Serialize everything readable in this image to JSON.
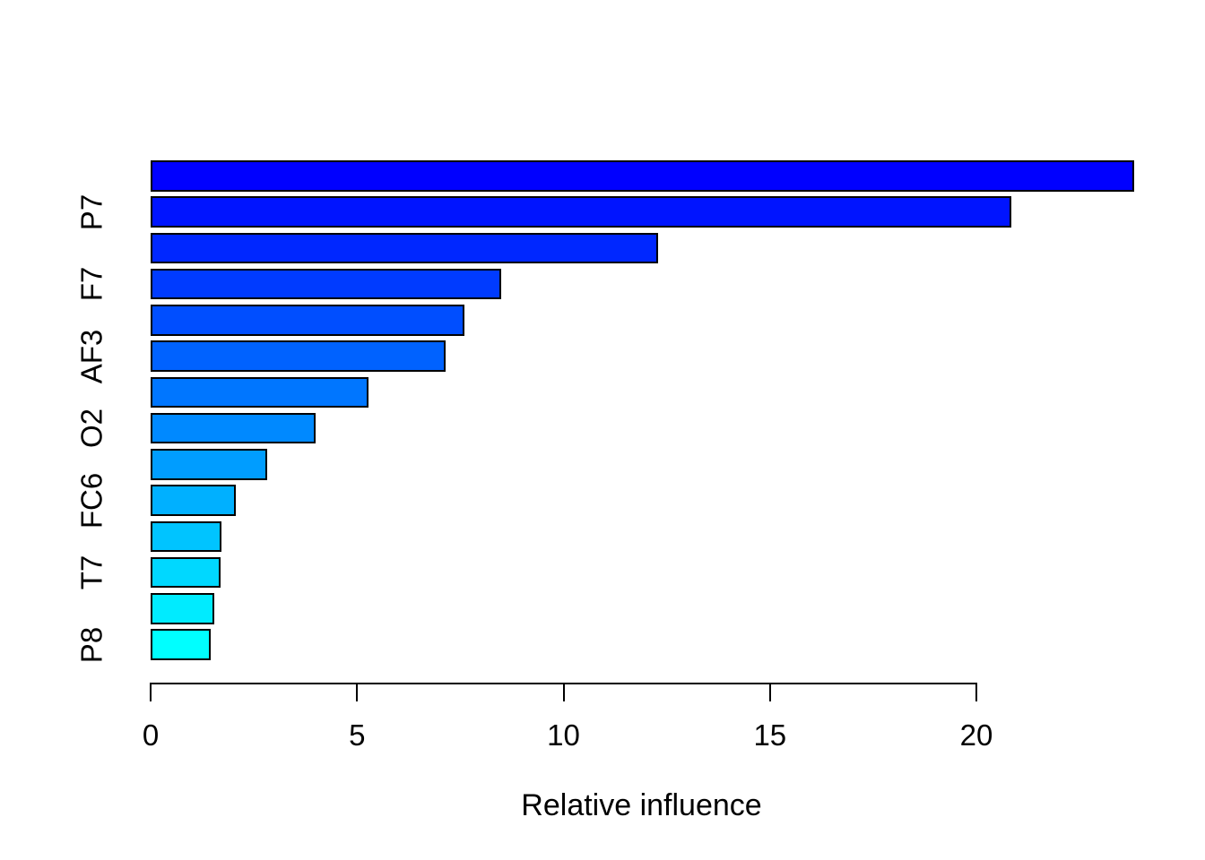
{
  "chart_data": {
    "type": "bar",
    "orientation": "horizontal",
    "title": "",
    "xlabel": "Relative influence",
    "ylabel": "",
    "categories": [
      "",
      "P7",
      "",
      "F7",
      "",
      "AF3",
      "",
      "O2",
      "",
      "FC6",
      "",
      "T7",
      "",
      "P8"
    ],
    "values": [
      23.78,
      20.8,
      12.24,
      8.45,
      7.56,
      7.1,
      5.23,
      3.95,
      2.78,
      2.02,
      1.68,
      1.66,
      1.5,
      1.42
    ],
    "bar_colors": [
      "#0000FF",
      "#0014FF",
      "#0027FF",
      "#003BFF",
      "#004EFF",
      "#0062FF",
      "#0076FF",
      "#0089FF",
      "#009DFF",
      "#00B0FF",
      "#00C4FF",
      "#00D8FF",
      "#00EBFF",
      "#00FFFF"
    ],
    "bar_border_color": "#000000",
    "x_ticks": [
      0,
      5,
      10,
      15,
      20
    ],
    "xlim": [
      0,
      23.78
    ],
    "grid": false,
    "legend": "none",
    "background": "#FFFFFF",
    "axis_color": "#000000",
    "text_color": "#000000"
  }
}
